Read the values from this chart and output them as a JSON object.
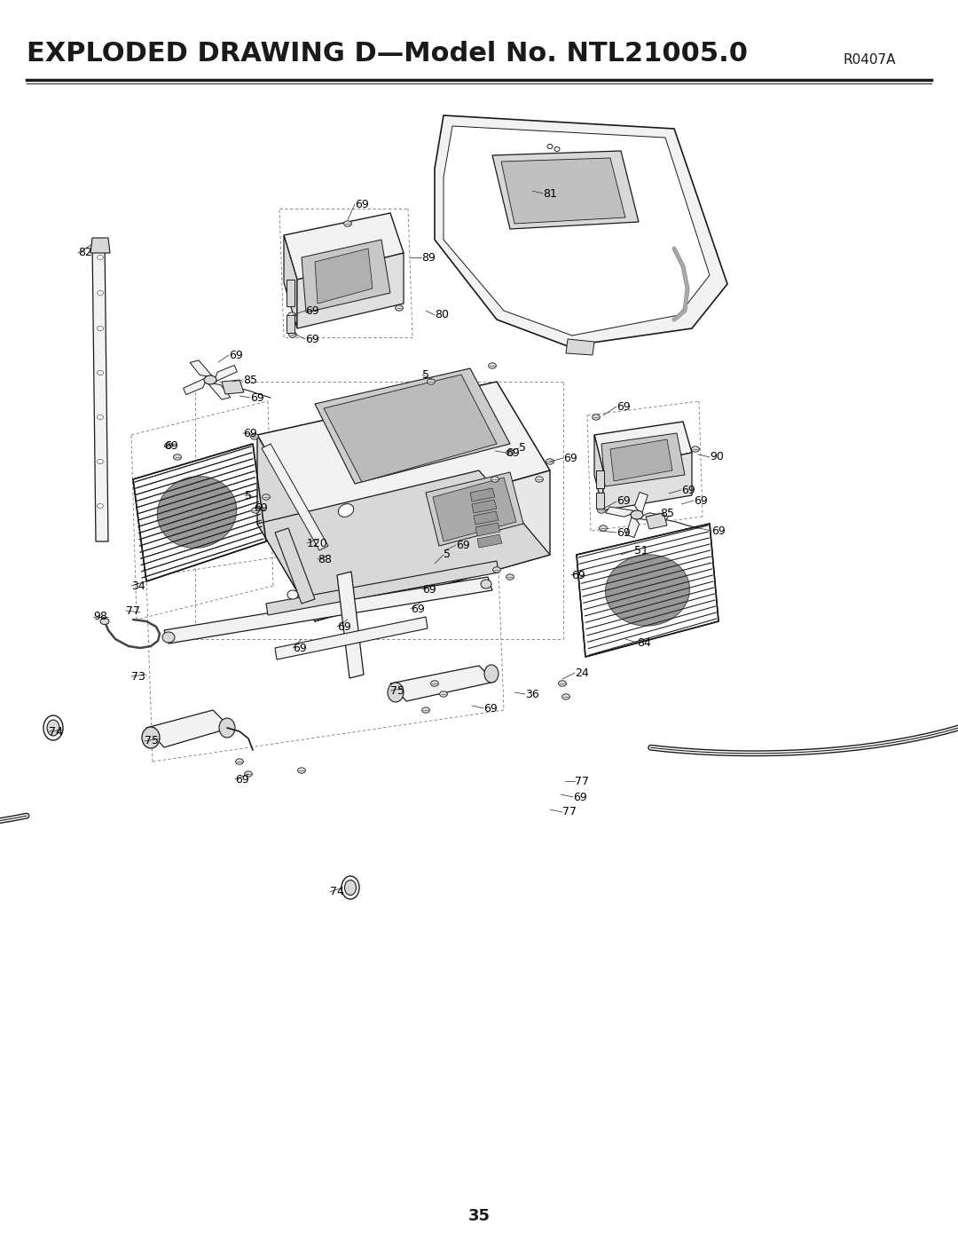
{
  "title": "EXPLODED DRAWING D—Model No. NTL21005.0",
  "revision": "R0407A",
  "page_number": "35",
  "bg_color": "#ffffff",
  "title_fontsize": 22,
  "revision_fontsize": 11,
  "page_fontsize": 13,
  "text_color": "#000000",
  "label_fontsize": 9.0,
  "line_color": "#1a1a1a",
  "gray_fill": "#f0f0f0",
  "dark_gray": "#888888"
}
